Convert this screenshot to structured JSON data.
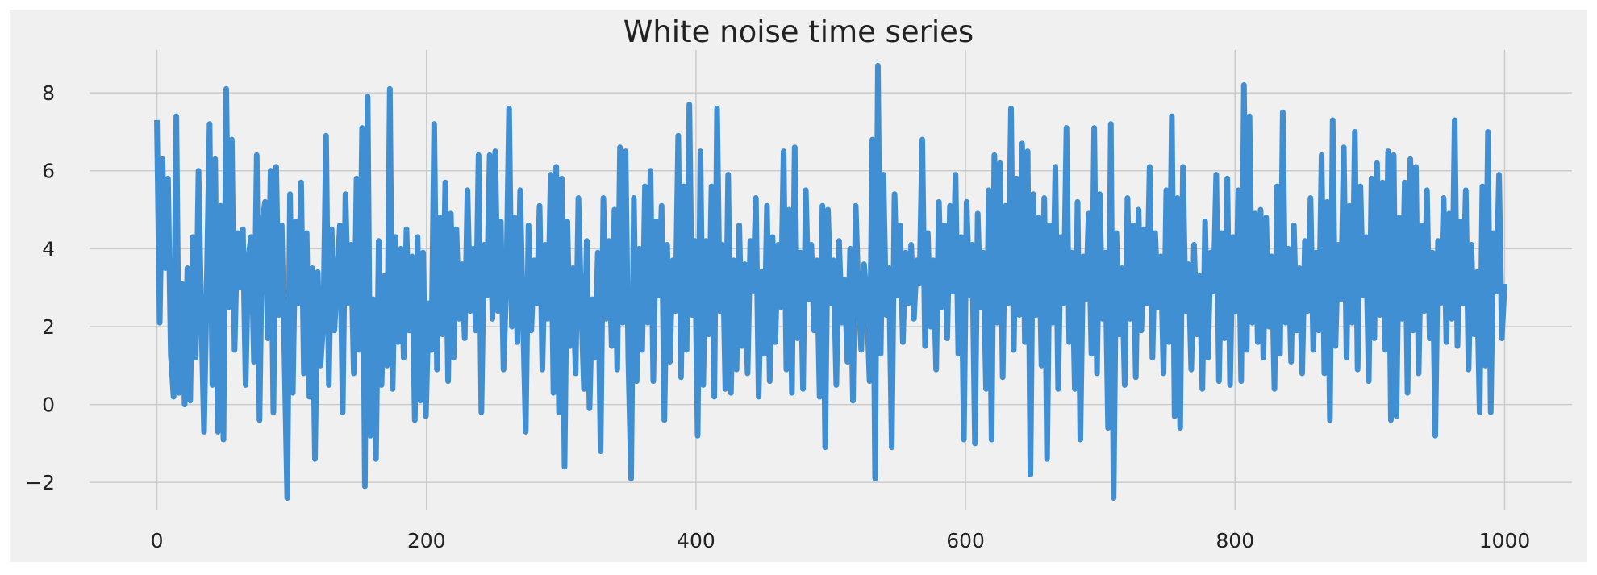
{
  "colors": {
    "figure_bg": "#f0f0f0",
    "plot_bg": "#f0f0f0",
    "grid": "#cbcbcb",
    "line": "#418fd3",
    "text": "#222222"
  },
  "chart_data": {
    "type": "line",
    "title": "White noise time series",
    "xlabel": "",
    "ylabel": "",
    "xlim": [
      -50,
      1050
    ],
    "ylim": [
      -2.7,
      9.1
    ],
    "grid": true,
    "x_ticks": [
      0,
      200,
      400,
      600,
      800,
      1000
    ],
    "x_tick_labels": [
      "0",
      "200",
      "400",
      "600",
      "800",
      "1000"
    ],
    "y_ticks": [
      -2,
      0,
      2,
      4,
      6,
      8
    ],
    "y_tick_labels": [
      "−2",
      "0",
      "2",
      "4",
      "6",
      "8"
    ],
    "series": [
      {
        "color": "#418fd3",
        "x_start": 0,
        "x_step": 1,
        "values": [
          7.3,
          2.1,
          6.3,
          3.5,
          5.8,
          1.3,
          0.2,
          7.4,
          0.3,
          3.1,
          0.0,
          3.5,
          0.1,
          4.3,
          1.2,
          6.0,
          2.3,
          -0.7,
          3.2,
          7.2,
          0.5,
          6.3,
          -0.7,
          5.1,
          -0.9,
          8.1,
          2.5,
          6.8,
          1.4,
          4.4,
          3.0,
          4.5,
          0.5,
          3.8,
          4.3,
          1.1,
          6.4,
          -0.4,
          4.7,
          5.2,
          1.7,
          6.0,
          -0.2,
          6.1,
          2.3,
          4.6,
          1.3,
          -2.4,
          5.4,
          0.3,
          4.7,
          2.6,
          5.7,
          0.8,
          4.4,
          0.2,
          3.5,
          -1.4,
          3.4,
          1.0,
          2.1,
          6.9,
          0.5,
          4.5,
          1.9,
          3.3,
          4.6,
          -0.2,
          5.4,
          2.6,
          4.1,
          0.8,
          5.8,
          1.4,
          7.1,
          -2.1,
          7.9,
          -0.8,
          2.7,
          -1.4,
          4.2,
          0.5,
          3.3,
          1.0,
          8.1,
          0.4,
          4.3,
          1.6,
          4.0,
          1.2,
          4.5,
          1.9,
          3.8,
          -0.4,
          4.3,
          0.1,
          3.9,
          -0.3,
          2.6,
          1.4,
          7.2,
          0.9,
          4.8,
          1.8,
          5.7,
          0.6,
          4.9,
          1.2,
          4.5,
          2.2,
          3.6,
          1.7,
          5.5,
          2.4,
          4.0,
          1.9,
          6.4,
          -0.2,
          4.1,
          2.8,
          6.4,
          2.2,
          6.5,
          2.4,
          4.7,
          0.9,
          3.1,
          7.6,
          2.0,
          4.8,
          1.6,
          5.5,
          2.3,
          -0.7,
          4.6,
          1.9,
          3.7,
          2.6,
          5.1,
          0.9,
          4.1,
          2.2,
          5.9,
          0.3,
          6.1,
          -0.2,
          5.8,
          -1.6,
          4.7,
          1.5,
          3.5,
          0.8,
          5.3,
          2.6,
          0.4,
          4.2,
          -0.1,
          2.7,
          1.2,
          3.9,
          -1.2,
          5.3,
          2.2,
          4.2,
          1.5,
          5.0,
          0.9,
          6.6,
          2.1,
          6.5,
          1.2,
          -1.9,
          5.3,
          0.6,
          4.0,
          1.4,
          5.6,
          2.1,
          6.0,
          0.6,
          4.7,
          2.8,
          5.1,
          -0.4,
          4.1,
          1.1,
          3.7,
          2.4,
          6.9,
          0.7,
          5.6,
          1.4,
          7.7,
          2.3,
          4.2,
          -0.8,
          6.5,
          0.5,
          4.2,
          1.8,
          5.6,
          0.2,
          7.6,
          2.4,
          4.1,
          0.4,
          5.9,
          0.3,
          3.7,
          0.9,
          4.6,
          1.5,
          3.6,
          0.8,
          4.2,
          2.9,
          5.3,
          0.2,
          3.4,
          1.3,
          5.1,
          0.6,
          4.3,
          1.6,
          4.1,
          2.5,
          6.5,
          0.9,
          5.0,
          0.3,
          6.6,
          1.7,
          3.9,
          0.4,
          5.5,
          2.7,
          4.1,
          1.9,
          3.7,
          0.2,
          5.1,
          -1.1,
          5.0,
          2.6,
          3.7,
          0.5,
          4.2,
          2.1,
          3.2,
          1.1,
          4.0,
          0.1,
          5.1,
          2.8,
          1.4,
          3.6,
          2.7,
          0.6,
          6.8,
          -1.9,
          8.7,
          1.3,
          5.9,
          2.3,
          3.5,
          -1.1,
          5.4,
          2.8,
          4.6,
          1.6,
          3.9,
          2.6,
          4.1,
          2.2,
          3.7,
          3.1,
          6.8,
          1.5,
          4.4,
          2.0,
          3.7,
          0.9,
          5.2,
          2.5,
          4.6,
          1.7,
          5.1,
          2.9,
          5.9,
          1.3,
          4.3,
          -0.9,
          5.2,
          2.8,
          4.1,
          -1.0,
          4.9,
          2.5,
          3.9,
          0.4,
          5.5,
          -0.9,
          6.4,
          2.1,
          6.2,
          0.7,
          5.1,
          2.6,
          7.6,
          1.4,
          5.8,
          2.3,
          6.7,
          1.6,
          6.5,
          -1.8,
          5.4,
          2.3,
          4.8,
          1.0,
          5.3,
          -1.4,
          4.6,
          2.1,
          6.1,
          0.4,
          4.3,
          2.6,
          7.1,
          1.6,
          3.9,
          0.4,
          5.2,
          -0.9,
          3.8,
          2.7,
          4.9,
          1.3,
          7.1,
          0.8,
          5.4,
          2.2,
          3.9,
          -0.6,
          7.2,
          -2.4,
          4.4,
          1.8,
          3.5,
          0.5,
          5.3,
          2.2,
          4.6,
          0.7,
          5.0,
          1.9,
          4.5,
          2.6,
          6.1,
          1.2,
          4.4,
          2.5,
          3.8,
          0.8,
          5.5,
          1.6,
          7.4,
          -0.3,
          5.3,
          -0.6,
          6.1,
          2.4,
          3.6,
          0.9,
          4.1,
          1.8,
          3.3,
          0.4,
          4.7,
          1.2,
          3.9,
          2.9,
          5.9,
          0.6,
          4.4,
          1.7,
          5.8,
          0.5,
          4.3,
          2.4,
          5.5,
          0.6,
          8.2,
          1.4,
          7.4,
          2.1,
          4.9,
          1.6,
          5.0,
          1.2,
          4.8,
          2.0,
          3.8,
          0.4,
          5.6,
          1.3,
          7.5,
          2.1,
          4.0,
          1.1,
          4.6,
          1.9,
          3.5,
          0.8,
          4.2,
          2.4,
          5.3,
          1.4,
          3.9,
          1.9,
          6.4,
          0.8,
          5.2,
          -0.4,
          7.3,
          1.5,
          4.1,
          2.7,
          6.6,
          1.2,
          5.1,
          2.1,
          7.0,
          0.9,
          5.6,
          2.8,
          4.3,
          0.6,
          5.8,
          1.7,
          6.2,
          2.3,
          5.7,
          1.4,
          6.5,
          -0.4,
          6.4,
          -0.3,
          4.8,
          2.2,
          5.7,
          0.3,
          6.3,
          1.9,
          6.1,
          0.8,
          4.6,
          2.4,
          5.5,
          1.7,
          3.9,
          -0.8,
          4.2,
          2.6,
          5.3,
          1.6,
          4.9,
          2.2,
          7.3,
          1.5,
          4.7,
          2.6,
          5.5,
          0.9,
          4.1,
          1.8,
          3.4,
          -0.2,
          5.6,
          1.0,
          7.0,
          -0.2,
          4.4,
          2.9,
          5.9,
          1.7,
          3.1
        ]
      }
    ]
  }
}
